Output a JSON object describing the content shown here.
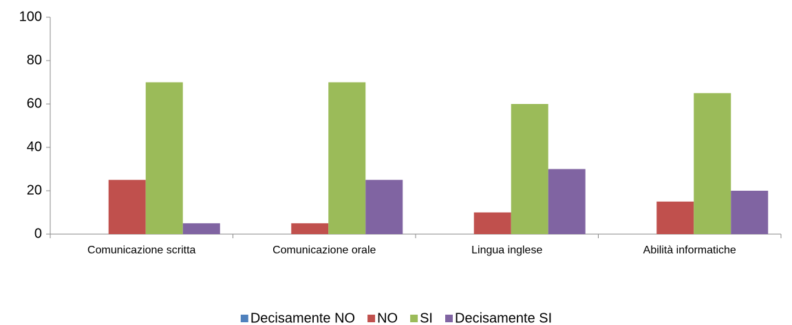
{
  "chart_data": {
    "type": "bar",
    "categories": [
      "Comunicazione scritta",
      "Comunicazione orale",
      "Lingua inglese",
      "Abilità informatiche"
    ],
    "series": [
      {
        "name": "Decisamente NO",
        "color": "#4f81bd",
        "values": [
          0,
          0,
          0,
          0
        ]
      },
      {
        "name": "NO",
        "color": "#c0504d",
        "values": [
          25,
          5,
          10,
          15
        ]
      },
      {
        "name": "SI",
        "color": "#9bbb59",
        "values": [
          70,
          70,
          60,
          65
        ]
      },
      {
        "name": "Decisamente SI",
        "color": "#8064a2",
        "values": [
          5,
          25,
          30,
          20
        ]
      }
    ],
    "ylim": [
      0,
      100
    ],
    "yticks": [
      0,
      20,
      40,
      60,
      80,
      100
    ],
    "grid": false,
    "legend": "bottom"
  }
}
